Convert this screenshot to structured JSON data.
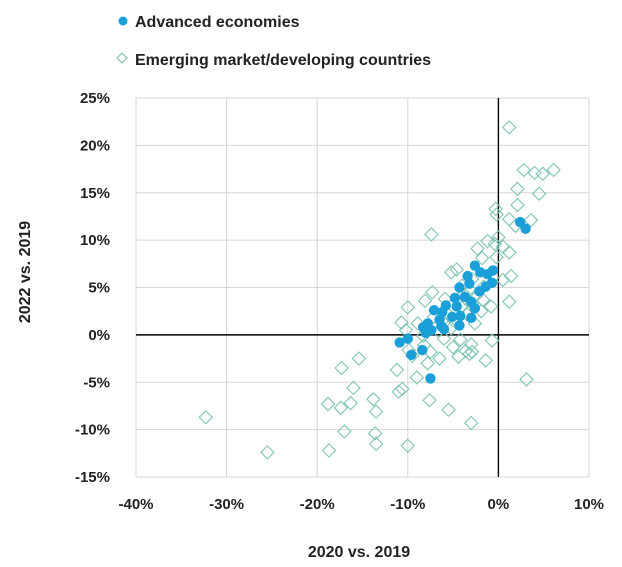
{
  "chart_data": {
    "type": "scatter",
    "xlabel": "2020 vs. 2019",
    "ylabel": "2022 vs. 2019",
    "xlim": [
      -40,
      10
    ],
    "ylim": [
      -15,
      25
    ],
    "x_ticks": [
      -40,
      -30,
      -20,
      -10,
      0,
      10
    ],
    "y_ticks": [
      -15,
      -10,
      -5,
      0,
      5,
      10,
      15,
      20,
      25
    ],
    "x_tick_labels": [
      "-40%",
      "-30%",
      "-20%",
      "-10%",
      "0%",
      "10%"
    ],
    "y_tick_labels": [
      "-15%",
      "-10%",
      "-5%",
      "0%",
      "5%",
      "10%",
      "15%",
      "20%",
      "25%"
    ],
    "grid": true,
    "legend_position": "top-left",
    "series": [
      {
        "name": "Advanced economies",
        "marker": "filled-circle",
        "color": "#1a9fd9",
        "points": [
          [
            2.4,
            11.9
          ],
          [
            3.0,
            11.2
          ],
          [
            -0.6,
            6.8
          ],
          [
            -1.2,
            6.4
          ],
          [
            -2.6,
            7.3
          ],
          [
            -2.0,
            6.6
          ],
          [
            -3.4,
            6.2
          ],
          [
            -3.2,
            5.4
          ],
          [
            -0.7,
            5.5
          ],
          [
            -1.4,
            5.1
          ],
          [
            -4.3,
            5.0
          ],
          [
            -2.1,
            4.6
          ],
          [
            -3.7,
            4.0
          ],
          [
            -4.8,
            3.9
          ],
          [
            -3.0,
            3.5
          ],
          [
            -5.8,
            3.1
          ],
          [
            -2.6,
            2.8
          ],
          [
            -4.6,
            3.0
          ],
          [
            -6.2,
            2.4
          ],
          [
            -7.1,
            2.6
          ],
          [
            -4.2,
            2.0
          ],
          [
            -5.1,
            1.9
          ],
          [
            -3.0,
            1.8
          ],
          [
            -6.5,
            1.6
          ],
          [
            -7.8,
            1.2
          ],
          [
            -6.3,
            0.9
          ],
          [
            -8.3,
            0.8
          ],
          [
            -4.3,
            1.0
          ],
          [
            -7.4,
            0.5
          ],
          [
            -6.0,
            0.6
          ],
          [
            -8.0,
            0.2
          ],
          [
            -10.0,
            -0.4
          ],
          [
            -10.9,
            -0.8
          ],
          [
            -8.4,
            -1.6
          ],
          [
            -9.6,
            -2.1
          ],
          [
            -7.5,
            -4.6
          ]
        ]
      },
      {
        "name": "Emerging market/developing countries",
        "marker": "open-diamond",
        "color": "#7fc4b4",
        "points": [
          [
            1.2,
            21.9
          ],
          [
            6.1,
            17.4
          ],
          [
            2.8,
            17.4
          ],
          [
            4.9,
            17.0
          ],
          [
            4.0,
            17.1
          ],
          [
            2.1,
            15.4
          ],
          [
            4.5,
            14.9
          ],
          [
            2.1,
            13.7
          ],
          [
            -0.3,
            13.3
          ],
          [
            -0.2,
            12.7
          ],
          [
            1.2,
            12.2
          ],
          [
            3.6,
            12.1
          ],
          [
            1.9,
            11.5
          ],
          [
            0.0,
            10.3
          ],
          [
            -7.4,
            10.6
          ],
          [
            -1.2,
            9.9
          ],
          [
            -0.4,
            9.6
          ],
          [
            0.5,
            9.3
          ],
          [
            1.2,
            8.7
          ],
          [
            -2.3,
            9.1
          ],
          [
            -0.2,
            8.2
          ],
          [
            -1.8,
            8.1
          ],
          [
            -5.2,
            6.6
          ],
          [
            -4.6,
            6.9
          ],
          [
            1.4,
            6.2
          ],
          [
            0.5,
            5.8
          ],
          [
            -2.9,
            5.9
          ],
          [
            -1.6,
            5.1
          ],
          [
            -4.0,
            5.2
          ],
          [
            -3.1,
            4.7
          ],
          [
            -7.3,
            4.5
          ],
          [
            -2.5,
            4.1
          ],
          [
            -5.9,
            3.8
          ],
          [
            -8.1,
            3.6
          ],
          [
            -10.0,
            2.9
          ],
          [
            -3.8,
            4.3
          ],
          [
            -1.7,
            3.7
          ],
          [
            -0.8,
            3.0
          ],
          [
            -2.9,
            3.3
          ],
          [
            -4.1,
            2.9
          ],
          [
            1.2,
            3.5
          ],
          [
            -1.9,
            2.5
          ],
          [
            -3.5,
            2.2
          ],
          [
            -5.5,
            2.1
          ],
          [
            -7.1,
            1.9
          ],
          [
            -6.2,
            1.5
          ],
          [
            -4.7,
            1.3
          ],
          [
            -8.9,
            1.2
          ],
          [
            -10.7,
            1.3
          ],
          [
            -2.6,
            1.2
          ],
          [
            -5.2,
            0.7
          ],
          [
            -6.6,
            0.4
          ],
          [
            -10.2,
            0.5
          ],
          [
            -8.3,
            -0.1
          ],
          [
            -6.0,
            -0.4
          ],
          [
            -4.2,
            -0.5
          ],
          [
            -0.7,
            -0.6
          ],
          [
            -3.0,
            -1.0
          ],
          [
            -8.2,
            -1.1
          ],
          [
            -9.9,
            -1.6
          ],
          [
            -5.0,
            -1.3
          ],
          [
            -3.6,
            -1.7
          ],
          [
            -7.5,
            -1.8
          ],
          [
            -9.5,
            -2.2
          ],
          [
            -4.4,
            -2.3
          ],
          [
            -3.2,
            -2.0
          ],
          [
            -1.4,
            -2.7
          ],
          [
            -2.9,
            -1.8
          ],
          [
            -6.5,
            -2.5
          ],
          [
            -7.8,
            -3.0
          ],
          [
            -11.2,
            -3.7
          ],
          [
            -15.4,
            -2.5
          ],
          [
            -17.3,
            -3.5
          ],
          [
            -9.0,
            -4.5
          ],
          [
            -10.6,
            -5.7
          ],
          [
            3.1,
            -4.7
          ],
          [
            -11.0,
            -6.0
          ],
          [
            -16.0,
            -5.6
          ],
          [
            -13.8,
            -6.8
          ],
          [
            -7.6,
            -6.9
          ],
          [
            -5.5,
            -7.9
          ],
          [
            -13.5,
            -8.1
          ],
          [
            -18.8,
            -7.3
          ],
          [
            -16.3,
            -7.2
          ],
          [
            -17.4,
            -7.7
          ],
          [
            -3.0,
            -9.3
          ],
          [
            -32.3,
            -8.7
          ],
          [
            -13.6,
            -10.4
          ],
          [
            -17.0,
            -10.2
          ],
          [
            -13.5,
            -11.5
          ],
          [
            -10.0,
            -11.7
          ],
          [
            -18.7,
            -12.2
          ],
          [
            -25.5,
            -12.4
          ]
        ]
      }
    ]
  }
}
